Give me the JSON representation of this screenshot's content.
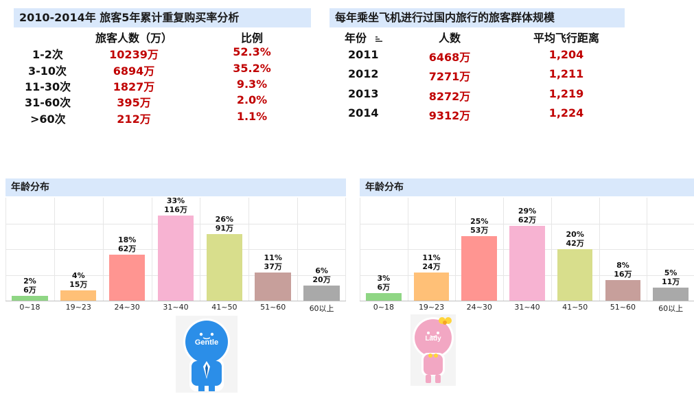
{
  "panel1": {
    "title": "2010-2014年 旅客5年累计重复购买率分析",
    "col_count": "旅客人数（万）",
    "col_ratio": "比例",
    "rows": [
      {
        "label": "1-2次",
        "count": "10239万",
        "ratio": "52.3%"
      },
      {
        "label": "3-10次",
        "count": "6894万",
        "ratio": "35.2%"
      },
      {
        "label": "11-30次",
        "count": "1827万",
        "ratio": "9.3%"
      },
      {
        "label": "31-60次",
        "count": "395万",
        "ratio": "2.0%"
      },
      {
        "label": ">60次",
        "count": "212万",
        "ratio": "1.1%"
      }
    ]
  },
  "panel2": {
    "title": "每年乘坐飞机进行过国内旅行的旅客群体规模",
    "col_year": "年份",
    "col_people": "人数",
    "col_distance": "平均飞行距离",
    "rows": [
      {
        "year": "2011",
        "people": "6468万",
        "distance": "1,204"
      },
      {
        "year": "2012",
        "people": "7271万",
        "distance": "1,211"
      },
      {
        "year": "2013",
        "people": "8272万",
        "distance": "1,219"
      },
      {
        "year": "2014",
        "people": "9312万",
        "distance": "1,224"
      }
    ]
  },
  "mascots": {
    "gentle": "Gentle",
    "lady": "Lady"
  },
  "chart_data": [
    {
      "type": "bar",
      "title": "年龄分布",
      "categories": [
        "0~18",
        "19~23",
        "24~30",
        "31~40",
        "41~50",
        "51~60",
        "60以上"
      ],
      "values": [
        2,
        4,
        18,
        33,
        26,
        11,
        6
      ],
      "pct_labels": [
        "2%",
        "4%",
        "18%",
        "33%",
        "26%",
        "11%",
        "6%"
      ],
      "count_labels": [
        "6万",
        "15万",
        "62万",
        "116万",
        "91万",
        "37万",
        "20万"
      ],
      "colors": [
        "#8fd684",
        "#ffc077",
        "#ff9591",
        "#f7b3d2",
        "#d8de8c",
        "#c79f9b",
        "#a9a9a9"
      ],
      "ylim": [
        0,
        40
      ]
    },
    {
      "type": "bar",
      "title": "年龄分布",
      "categories": [
        "0~18",
        "19~23",
        "24~30",
        "31~40",
        "41~50",
        "51~60",
        "60以上"
      ],
      "values": [
        3,
        11,
        25,
        29,
        20,
        8,
        5
      ],
      "pct_labels": [
        "3%",
        "11%",
        "25%",
        "29%",
        "20%",
        "8%",
        "5%"
      ],
      "count_labels": [
        "6万",
        "24万",
        "53万",
        "62万",
        "42万",
        "16万",
        "11万"
      ],
      "colors": [
        "#8fd684",
        "#ffc077",
        "#ff9591",
        "#f7b3d2",
        "#d8de8c",
        "#c79f9b",
        "#a9a9a9"
      ],
      "ylim": [
        0,
        40
      ]
    }
  ]
}
